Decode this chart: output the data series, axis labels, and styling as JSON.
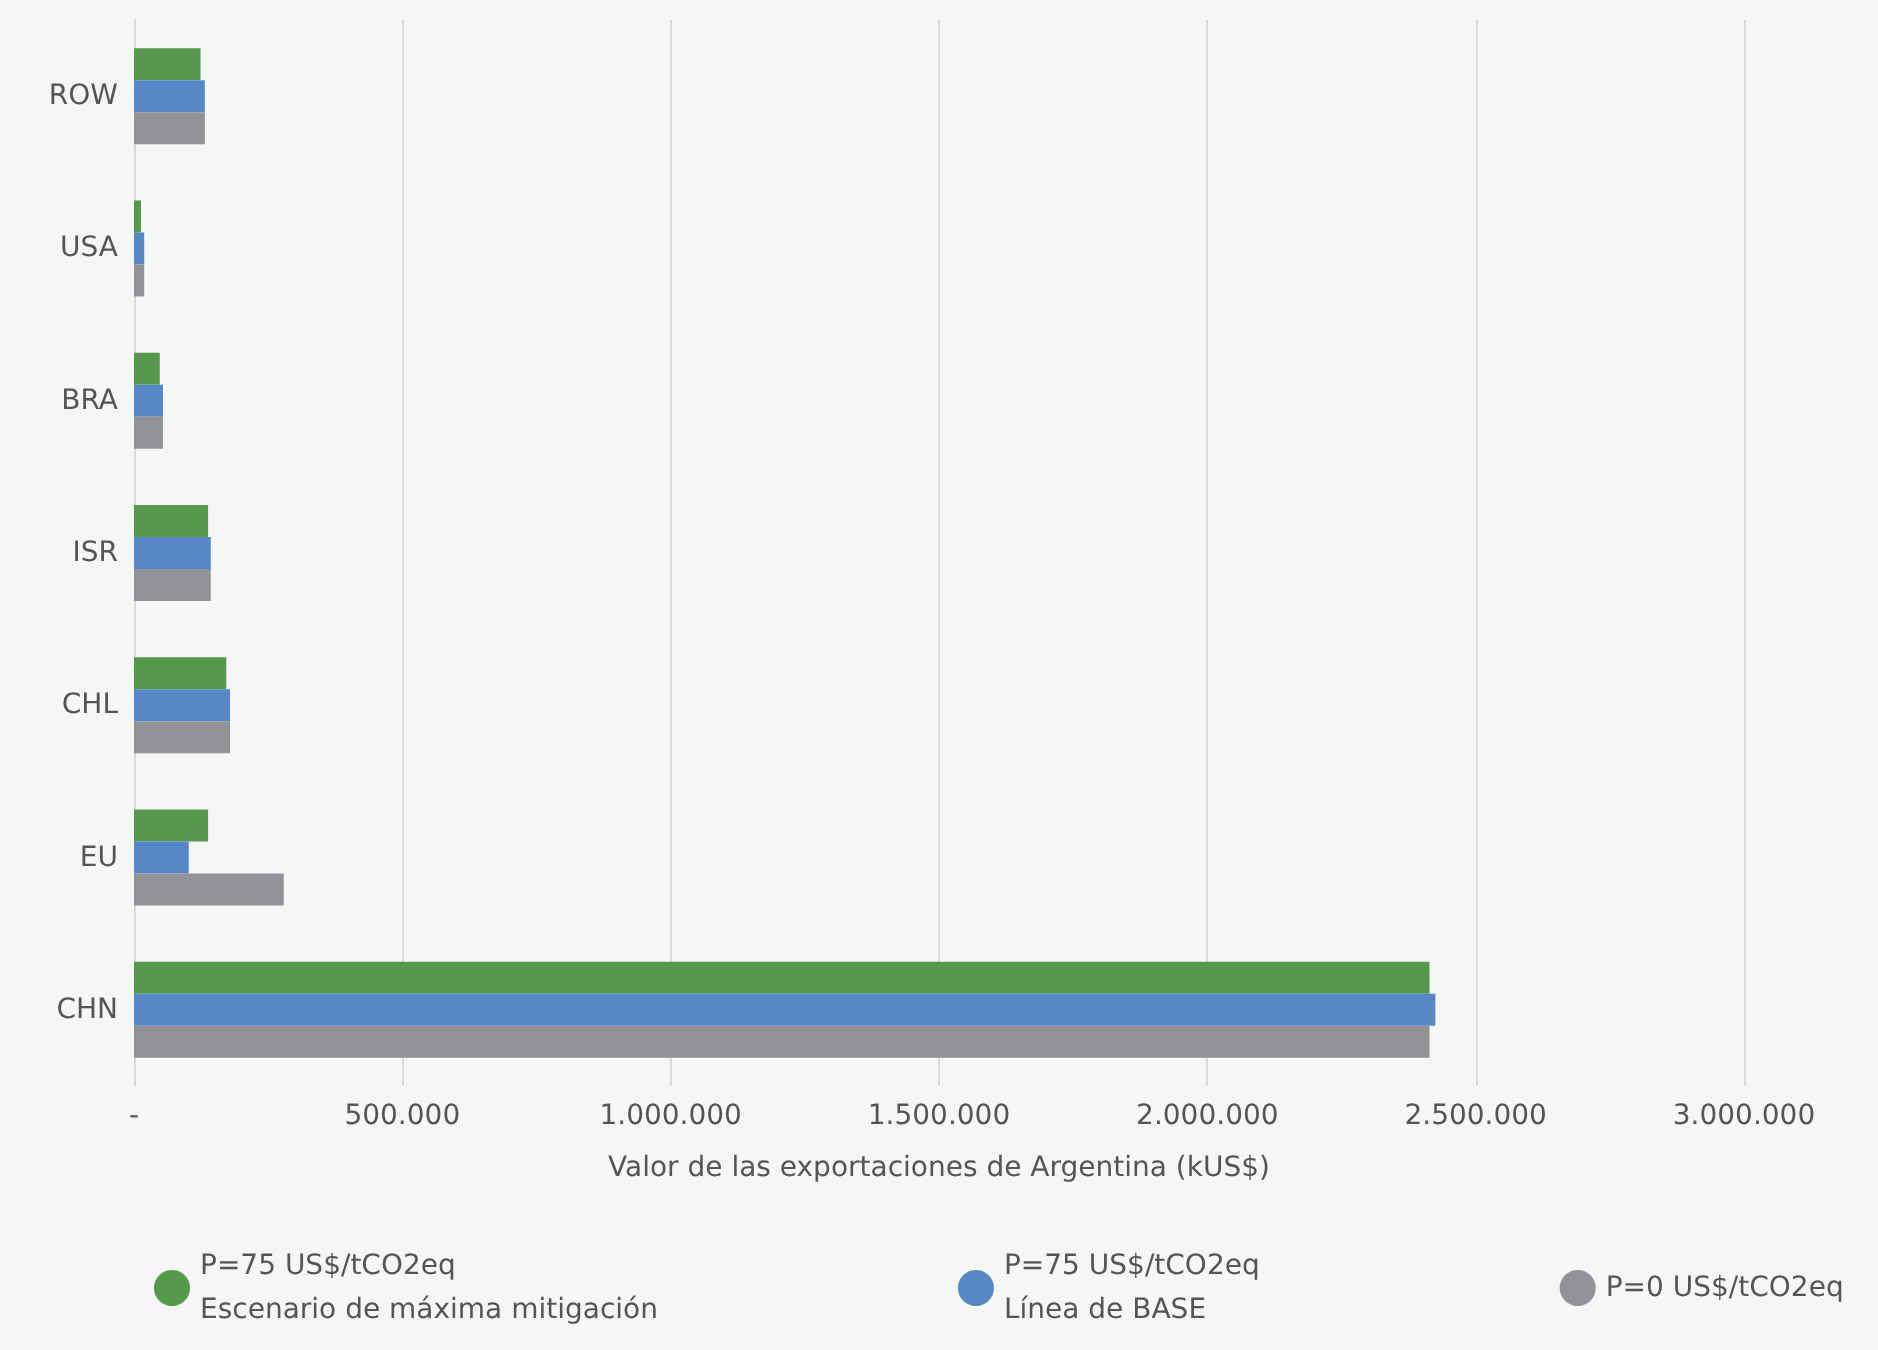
{
  "chart_data": {
    "type": "bar",
    "orientation": "horizontal",
    "xlabel": "Valor de las exportaciones de Argentina (kUS$)",
    "categories": [
      "ROW",
      "USA",
      "BRA",
      "ISR",
      "CHL",
      "EU",
      "CHN"
    ],
    "series": [
      {
        "name": "P=75 US$/tCO2eq\nEscenario de máxima mitigación",
        "color": "#56994c",
        "values": [
          124000,
          13000,
          48000,
          138000,
          172000,
          138000,
          2414000
        ]
      },
      {
        "name": "P=75 US$/tCO2eq\nLínea de BASE",
        "color": "#5787c6",
        "values": [
          132000,
          19000,
          54000,
          143000,
          179000,
          102000,
          2425000
        ]
      },
      {
        "name": "P=0 US$/tCO2eq",
        "color": "#929396",
        "values": [
          132000,
          19000,
          54000,
          143000,
          179000,
          279000,
          2414000
        ]
      }
    ],
    "xlim": [
      0,
      3000000
    ],
    "xticks": [
      {
        "value": 0,
        "label": "-"
      },
      {
        "value": 500000,
        "label": "500.000"
      },
      {
        "value": 1000000,
        "label": "1.000.000"
      },
      {
        "value": 1500000,
        "label": "1.500.000"
      },
      {
        "value": 2000000,
        "label": "2.000.000"
      },
      {
        "value": 2500000,
        "label": "2.500.000"
      },
      {
        "value": 3000000,
        "label": "3.000.000"
      }
    ],
    "grid": "x",
    "legend": "bottom"
  }
}
